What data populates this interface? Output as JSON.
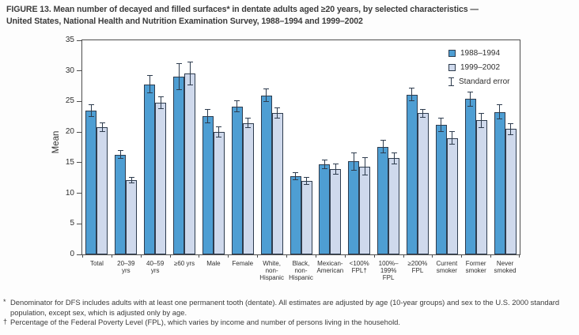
{
  "title": {
    "line1": "FIGURE 13. Mean number of decayed and filled surfaces* in dentate adults aged ≥20 years, by selected characteristics —",
    "line2": "United States, National Health and Nutrition Examination Survey, 1988–1994 and 1999–2002"
  },
  "chart_data": {
    "type": "bar",
    "title": "FIGURE 13. Mean number of decayed and filled surfaces in dentate adults aged ≥20 years",
    "xlabel": "",
    "ylabel": "Mean",
    "ylim": [
      0,
      35
    ],
    "yticks": [
      0,
      5,
      10,
      15,
      20,
      25,
      30,
      35
    ],
    "grid": false,
    "legend_position": "top-right",
    "categories": [
      "Total",
      "20–39\nyrs",
      "40–59\nyrs",
      "≥60 yrs",
      "Male",
      "Female",
      "White,\nnon-\nHispanic",
      "Black,\nnon-\nHispanic",
      "Mexican-\nAmerican",
      "<100%\nFPL†",
      "100%–\n199%\nFPL",
      "≥200%\nFPL",
      "Current\nsmoker",
      "Former\nsmoker",
      "Never\nsmoked"
    ],
    "series": [
      {
        "name": "1988–1994",
        "color": "#4e9ed3",
        "values": [
          23.5,
          16.3,
          27.8,
          29.1,
          22.6,
          24.2,
          26.0,
          12.8,
          14.7,
          15.2,
          17.6,
          26.1,
          21.2,
          25.4,
          23.3
        ],
        "standard_errors": [
          1.0,
          0.7,
          1.5,
          2.2,
          1.2,
          1.0,
          1.1,
          0.6,
          0.8,
          1.5,
          1.1,
          1.1,
          1.2,
          1.2,
          1.2
        ]
      },
      {
        "name": "1999–2002",
        "color": "#cfd9ec",
        "values": [
          20.8,
          12.1,
          24.8,
          29.6,
          20.0,
          21.5,
          23.1,
          12.0,
          13.9,
          14.4,
          15.7,
          23.1,
          19.0,
          21.9,
          20.5
        ],
        "standard_errors": [
          0.8,
          0.5,
          1.0,
          1.9,
          0.9,
          0.8,
          0.9,
          0.7,
          0.9,
          1.5,
          1.0,
          0.7,
          1.1,
          1.2,
          1.0
        ]
      }
    ],
    "legend": [
      {
        "label": "1988–1994",
        "symbol": "square",
        "color": "#4e9ed3"
      },
      {
        "label": "1999–2002",
        "symbol": "square",
        "color": "#cfd9ec"
      },
      {
        "label": "Standard error",
        "symbol": "error-bar-icon",
        "color": "#2e3c4e"
      }
    ]
  },
  "footnotes": [
    {
      "marker": "*",
      "text": "Denominator for DFS includes adults with at least one permanent tooth (dentate). All estimates are adjusted by age (10-year groups) and sex to the U.S. 2000 standard population, except sex, which is adjusted only by age."
    },
    {
      "marker": "†",
      "text": "Percentage of the Federal Poverty Level (FPL), which varies by income and number of persons living in the household."
    }
  ],
  "colors": {
    "series_1988_1994": "#4e9ed3",
    "series_1999_2002": "#cfd9ec",
    "bar_border": "#2e3c4e",
    "axis_frame": "#4d4d4d",
    "text": "#3b3b3b"
  }
}
